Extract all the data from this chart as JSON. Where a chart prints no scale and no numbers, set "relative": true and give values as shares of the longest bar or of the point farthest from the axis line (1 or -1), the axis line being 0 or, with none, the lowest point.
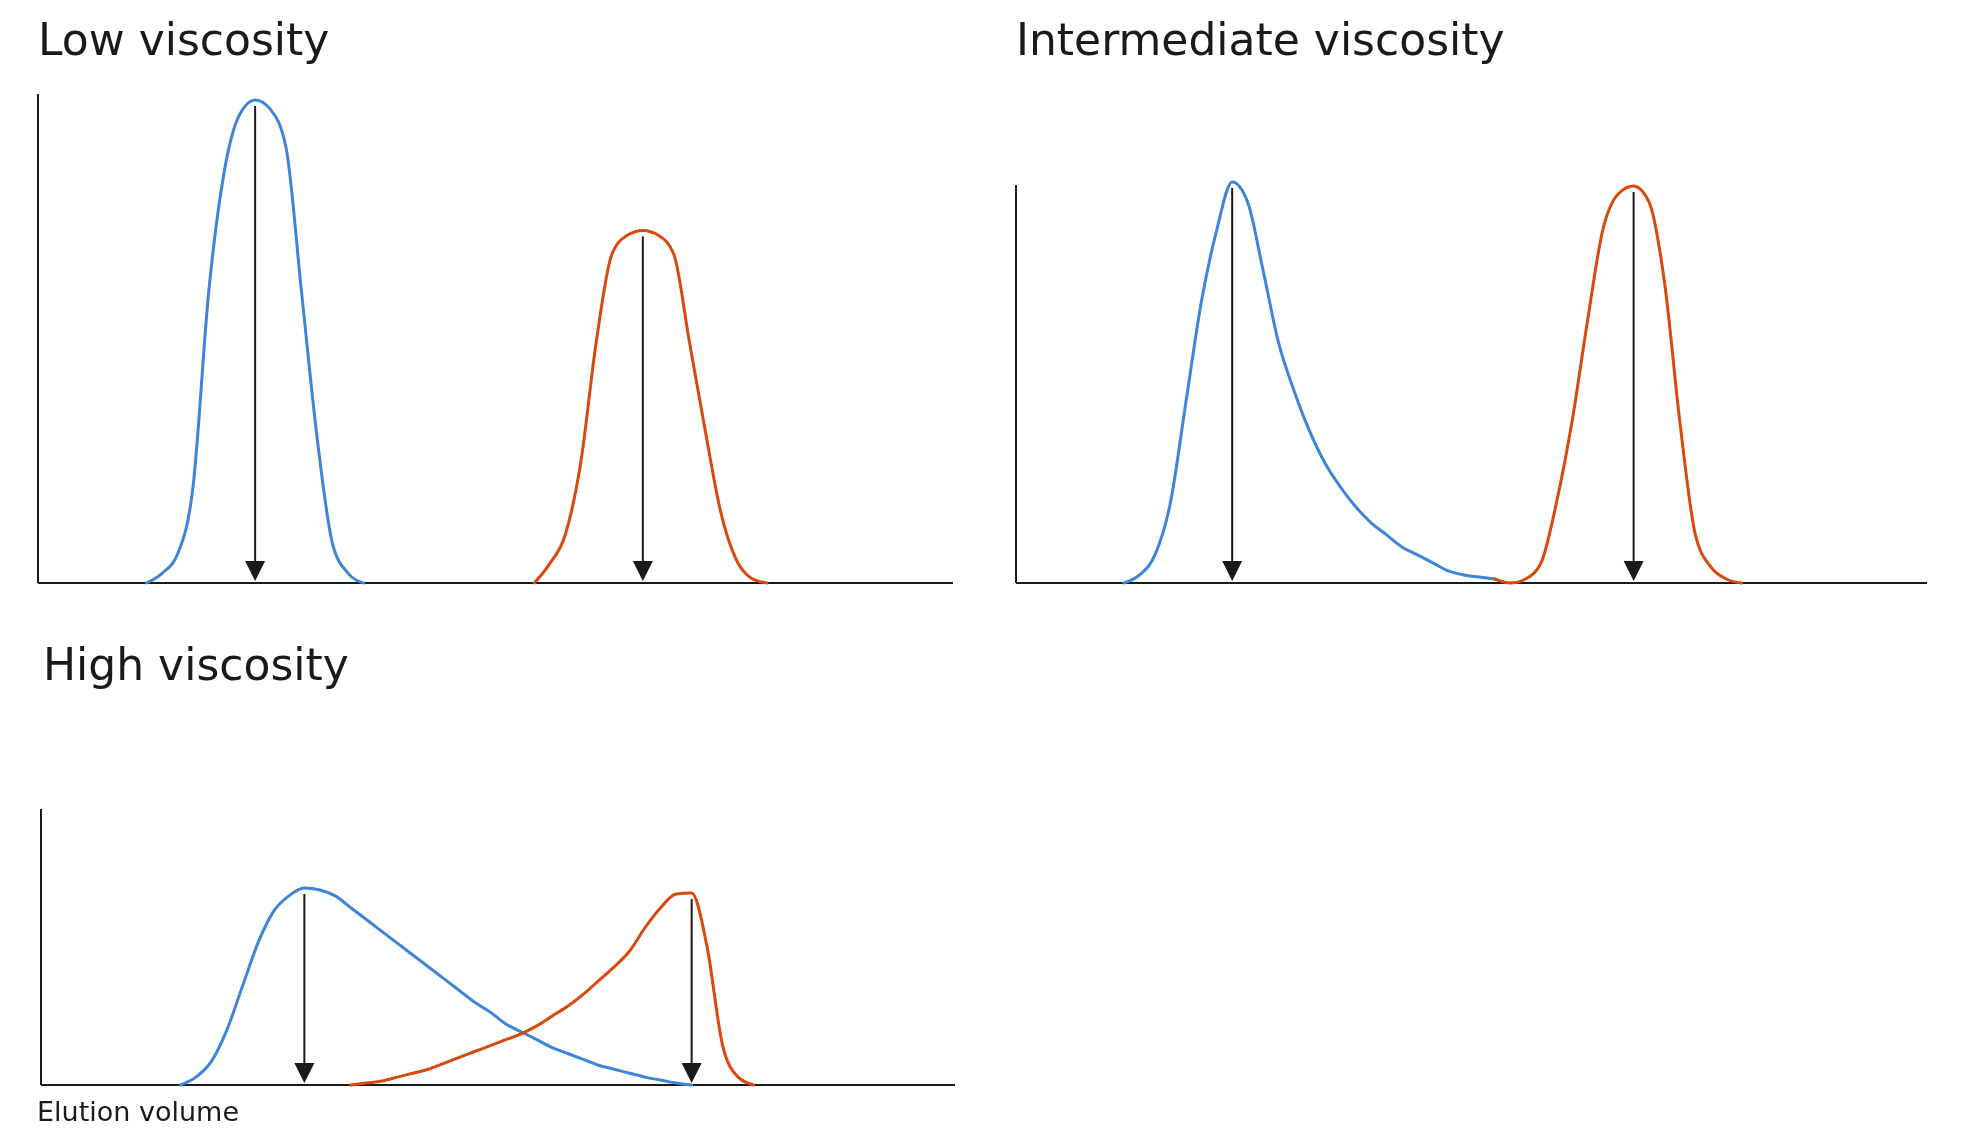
{
  "chart_data": [
    {
      "type": "line",
      "title": "Low viscosity",
      "relative": true,
      "categories": [
        null,
        null,
        null,
        null,
        null,
        null,
        null,
        null,
        null,
        null,
        null,
        null,
        null,
        null,
        null,
        null,
        null,
        null,
        null,
        null,
        null,
        null,
        null,
        null,
        null,
        null,
        null,
        null,
        null,
        null,
        null,
        null,
        null,
        null,
        null,
        null,
        null,
        null,
        null,
        null,
        null,
        null,
        null,
        null,
        null,
        null,
        null,
        null,
        null,
        null,
        null,
        null,
        null,
        null,
        null,
        null,
        null,
        null,
        null,
        null
      ],
      "series": [
        {
          "color": "#3d85d8",
          "values": [
            null,
            null,
            null,
            null,
            null,
            null,
            null,
            0,
            0.02,
            0.06,
            0.2,
            0.6,
            0.85,
            0.97,
            1,
            0.98,
            0.9,
            0.6,
            0.3,
            0.08,
            0.02,
            0,
            null,
            null,
            null,
            null,
            null,
            null,
            null,
            null,
            null,
            null,
            null,
            null,
            null,
            null,
            null,
            null,
            null,
            null,
            null,
            null,
            null,
            null,
            null,
            null,
            null,
            null,
            null,
            null,
            null,
            null,
            null,
            null,
            null,
            null,
            null,
            null,
            null,
            null
          ]
        },
        {
          "color": "#d9480f",
          "values": [
            null,
            null,
            null,
            null,
            null,
            null,
            null,
            null,
            null,
            null,
            null,
            null,
            null,
            null,
            null,
            null,
            null,
            null,
            null,
            null,
            null,
            null,
            null,
            null,
            null,
            null,
            null,
            null,
            null,
            null,
            null,
            null,
            0,
            0.04,
            0.1,
            0.25,
            0.5,
            0.68,
            0.72,
            0.73,
            0.72,
            0.68,
            0.5,
            0.32,
            0.15,
            0.05,
            0.01,
            0,
            null,
            null,
            null,
            null,
            null,
            null,
            null,
            null,
            null,
            null,
            null,
            null
          ]
        }
      ]
    },
    {
      "type": "line",
      "title": "Intermediate viscosity",
      "relative": true,
      "categories": [
        null,
        null,
        null,
        null,
        null,
        null,
        null,
        null,
        null,
        null,
        null,
        null,
        null,
        null,
        null,
        null,
        null,
        null,
        null,
        null,
        null,
        null,
        null,
        null,
        null,
        null,
        null,
        null,
        null,
        null,
        null,
        null,
        null,
        null,
        null,
        null,
        null,
        null,
        null,
        null,
        null,
        null,
        null,
        null,
        null,
        null,
        null,
        null,
        null,
        null,
        null,
        null,
        null,
        null,
        null,
        null,
        null,
        null,
        null,
        null
      ],
      "series": [
        {
          "color": "#3d85d8",
          "values": [
            null,
            null,
            null,
            null,
            null,
            null,
            null,
            0,
            0.02,
            0.07,
            0.2,
            0.45,
            0.7,
            0.88,
            1,
            0.95,
            0.78,
            0.6,
            0.48,
            0.38,
            0.3,
            0.24,
            0.19,
            0.15,
            0.12,
            0.09,
            0.07,
            0.05,
            0.03,
            0.02,
            0.015,
            0.01,
            null,
            null,
            null,
            null,
            null,
            null,
            null,
            null,
            null,
            null,
            null,
            null,
            null,
            null,
            null,
            null,
            null,
            null,
            null,
            null,
            null,
            null,
            null,
            null,
            null,
            null,
            null,
            null
          ]
        },
        {
          "color": "#d9480f",
          "values": [
            null,
            null,
            null,
            null,
            null,
            null,
            null,
            null,
            null,
            null,
            null,
            null,
            null,
            null,
            null,
            null,
            null,
            null,
            null,
            null,
            null,
            null,
            null,
            null,
            null,
            null,
            null,
            null,
            null,
            null,
            null,
            0.01,
            0,
            0.01,
            0.05,
            0.2,
            0.4,
            0.65,
            0.88,
            0.97,
            0.99,
            0.95,
            0.75,
            0.4,
            0.12,
            0.04,
            0.01,
            0,
            null,
            null,
            null,
            null,
            null,
            null,
            null,
            null,
            null,
            null,
            null,
            null
          ]
        }
      ]
    },
    {
      "type": "line",
      "title": "High viscosity",
      "xlabel": "Elution volume",
      "relative": true,
      "categories": [
        null,
        null,
        null,
        null,
        null,
        null,
        null,
        null,
        null,
        null,
        null,
        null,
        null,
        null,
        null,
        null,
        null,
        null,
        null,
        null,
        null,
        null,
        null,
        null,
        null,
        null,
        null,
        null,
        null,
        null,
        null,
        null,
        null,
        null,
        null,
        null,
        null,
        null,
        null,
        null,
        null,
        null,
        null,
        null,
        null,
        null,
        null,
        null,
        null,
        null,
        null,
        null,
        null,
        null,
        null,
        null,
        null,
        null,
        null,
        null
      ],
      "series": [
        {
          "color": "#3d85d8",
          "values": [
            null,
            null,
            null,
            null,
            null,
            null,
            null,
            null,
            null,
            0,
            0.04,
            0.12,
            0.28,
            0.5,
            0.72,
            0.88,
            0.96,
            1,
            0.99,
            0.96,
            0.9,
            0.84,
            0.78,
            0.72,
            0.66,
            0.6,
            0.54,
            0.48,
            0.42,
            0.37,
            0.31,
            0.27,
            0.23,
            0.19,
            0.16,
            0.13,
            0.1,
            0.08,
            0.06,
            0.04,
            0.025,
            0.01,
            0,
            null,
            null,
            null,
            null,
            null,
            null,
            null,
            null,
            null,
            null,
            null,
            null,
            null,
            null,
            null,
            null,
            null
          ]
        },
        {
          "color": "#d9480f",
          "values": [
            null,
            null,
            null,
            null,
            null,
            null,
            null,
            null,
            null,
            null,
            null,
            null,
            null,
            null,
            null,
            null,
            null,
            null,
            null,
            null,
            0,
            0.01,
            0.02,
            0.04,
            0.06,
            0.08,
            0.11,
            0.14,
            0.17,
            0.2,
            0.23,
            0.26,
            0.3,
            0.35,
            0.4,
            0.46,
            0.53,
            0.6,
            0.68,
            0.8,
            0.9,
            0.97,
            0.975,
            0.7,
            0.2,
            0.04,
            0,
            null,
            null,
            null,
            null,
            null,
            null,
            null,
            null,
            null,
            null,
            null,
            null,
            null
          ]
        }
      ]
    }
  ]
}
